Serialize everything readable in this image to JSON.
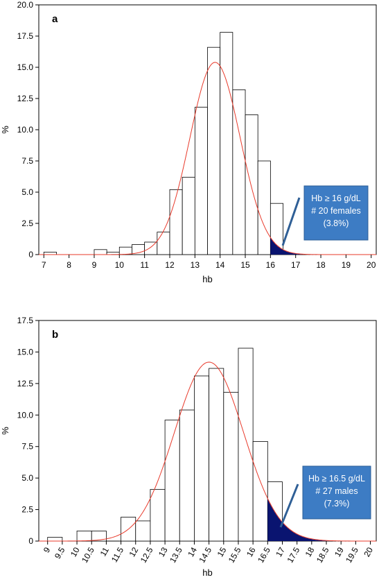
{
  "chart_data": [
    {
      "type": "bar",
      "panel_label": "a",
      "xlabel": "hb",
      "ylabel": "%",
      "xlim": [
        6.8,
        20.2
      ],
      "ylim": [
        0,
        20
      ],
      "xticks": [
        7,
        8,
        9,
        10,
        11,
        12,
        13,
        14,
        15,
        16,
        17,
        18,
        19,
        20
      ],
      "yticks": [
        "0",
        "2.5",
        "5.0",
        "7.5",
        "10.0",
        "12.5",
        "15.0",
        "17.5",
        "20.0"
      ],
      "bin_width": 0.5,
      "bins": [
        {
          "start": 7.0,
          "value": 0.2
        },
        {
          "start": 9.0,
          "value": 0.4
        },
        {
          "start": 9.5,
          "value": 0.2
        },
        {
          "start": 10.0,
          "value": 0.6
        },
        {
          "start": 10.5,
          "value": 0.8
        },
        {
          "start": 11.0,
          "value": 1.0
        },
        {
          "start": 11.5,
          "value": 1.8
        },
        {
          "start": 12.0,
          "value": 5.2
        },
        {
          "start": 12.5,
          "value": 6.2
        },
        {
          "start": 13.0,
          "value": 11.8
        },
        {
          "start": 13.5,
          "value": 16.6
        },
        {
          "start": 14.0,
          "value": 17.8
        },
        {
          "start": 14.5,
          "value": 13.2
        },
        {
          "start": 15.0,
          "value": 11.2
        },
        {
          "start": 15.5,
          "value": 7.5
        },
        {
          "start": 16.0,
          "value": 4.1
        }
      ],
      "normal_curve": {
        "mean": 13.8,
        "sd": 1.0,
        "peak": 15.4
      },
      "shaded_tail": {
        "threshold": 16.0,
        "end": 19.0
      },
      "annotation": [
        "Hb ≥ 16 g/dL",
        "# 20 females",
        "(3.8%)"
      ],
      "colors": {
        "tail": "#0a1470",
        "curve": "#e8392a",
        "callout": "#3d7cc4"
      }
    },
    {
      "type": "bar",
      "panel_label": "b",
      "xlabel": "hb",
      "ylabel": "%",
      "xlim": [
        8.7,
        20.2
      ],
      "ylim": [
        0,
        17.5
      ],
      "xticks": [
        "9",
        "9.5",
        "10",
        "10.5",
        "11",
        "11.5",
        "12",
        "12.5",
        "13",
        "13.5",
        "14",
        "14.5",
        "15",
        "15.5",
        "16",
        "16.5",
        "17",
        "17.5",
        "18",
        "18.5",
        "19",
        "19.5",
        "20"
      ],
      "yticks": [
        "0",
        "2.5",
        "5.0",
        "7.5",
        "10.0",
        "12.5",
        "15.0",
        "17.5"
      ],
      "bin_width": 0.5,
      "bins": [
        {
          "start": 9.0,
          "value": 0.3
        },
        {
          "start": 10.0,
          "value": 0.8
        },
        {
          "start": 10.5,
          "value": 0.8
        },
        {
          "start": 11.5,
          "value": 1.9
        },
        {
          "start": 12.0,
          "value": 1.6
        },
        {
          "start": 12.5,
          "value": 4.1
        },
        {
          "start": 13.0,
          "value": 9.6
        },
        {
          "start": 13.5,
          "value": 10.4
        },
        {
          "start": 14.0,
          "value": 13.1
        },
        {
          "start": 14.5,
          "value": 13.7
        },
        {
          "start": 15.0,
          "value": 11.8
        },
        {
          "start": 15.5,
          "value": 15.3
        },
        {
          "start": 16.0,
          "value": 7.9
        },
        {
          "start": 16.5,
          "value": 4.7
        }
      ],
      "normal_curve": {
        "mean": 14.5,
        "sd": 1.18,
        "peak": 14.2
      },
      "shaded_tail": {
        "threshold": 16.5,
        "end": 20.0
      },
      "annotation": [
        "Hb ≥ 16.5 g/dL",
        "# 27 males",
        "(7.3%)"
      ],
      "colors": {
        "tail": "#0a1470",
        "curve": "#e8392a",
        "callout": "#3d7cc4"
      }
    }
  ]
}
